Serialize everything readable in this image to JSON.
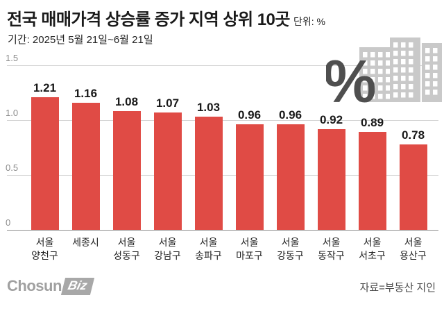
{
  "header": {
    "title": "전국 매매가격 상승률 증가 지역 상위 10곳",
    "unit": "단위: %",
    "period": "기간: 2025년 5월 21일~6월 21일"
  },
  "chart_data": {
    "type": "bar",
    "title": "전국 매매가격 상승률 증가 지역 상위 10곳",
    "unit": "%",
    "categories": [
      "서울 양천구",
      "세종시",
      "서울 성동구",
      "서울 강남구",
      "서울 송파구",
      "서울 마포구",
      "서울 강동구",
      "서울 동작구",
      "서울 서초구",
      "서울 용산구"
    ],
    "values": [
      1.21,
      1.16,
      1.08,
      1.07,
      1.03,
      0.96,
      0.96,
      0.92,
      0.89,
      0.78
    ],
    "ylim": [
      0,
      1.5
    ],
    "yticks": [
      1.5,
      1.0,
      0.5,
      0
    ],
    "ytick_labels": [
      "1.5",
      "1.0",
      "0.5",
      "0"
    ],
    "bar_color": "#e04b45",
    "grid": true,
    "legend": "none"
  },
  "decoration": {
    "percent_symbol": "%",
    "percent_color": "#4f4f4f",
    "building_color": "#c9c9c9",
    "window_color": "#ffffff"
  },
  "footer": {
    "logo_text": "Chosun",
    "logo_badge": "Biz",
    "source": "자료=부동산 지인"
  }
}
